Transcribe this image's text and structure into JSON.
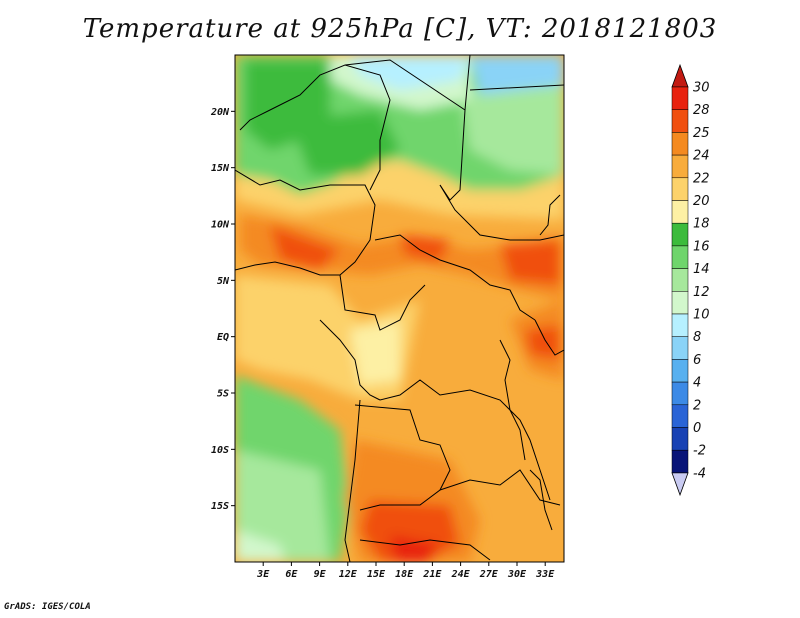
{
  "title": "Temperature at 925hPa [C], VT: 2018121803",
  "credit": "GrADS: IGES/COLA",
  "map": {
    "lon_range": [
      0,
      35
    ],
    "lat_range": [
      -20,
      25
    ],
    "lon_ticks": [
      "3E",
      "6E",
      "9E",
      "12E",
      "15E",
      "18E",
      "21E",
      "24E",
      "27E",
      "30E",
      "33E"
    ],
    "lat_ticks": [
      "20N",
      "15N",
      "10N",
      "5N",
      "EQ",
      "5S",
      "10S",
      "15S"
    ]
  },
  "colorbar": {
    "labels": [
      "30",
      "28",
      "25",
      "24",
      "22",
      "20",
      "18",
      "16",
      "14",
      "12",
      "10",
      "8",
      "6",
      "4",
      "2",
      "0",
      "-2",
      "-4"
    ],
    "colors": [
      "#e8220f",
      "#f05010",
      "#f48a20",
      "#f8ac3c",
      "#fcd26a",
      "#fdf0a4",
      "#3cbb3c",
      "#6fd56c",
      "#a6e89c",
      "#d2f7cc",
      "#b6f0ff",
      "#8ad3f7",
      "#58b0ef",
      "#3c8ae6",
      "#2a64d6",
      "#1842b4",
      "#081478"
    ],
    "top_arrow_color": "#c21a12",
    "bottom_arrow_color": "#c9cbf2"
  },
  "legend_colors": {
    "warm_25": "#f48a20",
    "warm_28": "#f05010",
    "warm_24": "#f8ac3c",
    "warm_22": "#fcd26a",
    "cool_16": "#3cbb3c",
    "cool_14": "#6fd56c",
    "cool_12": "#a6e89c",
    "cold_10": "#b6f0ff",
    "cold_8": "#8ad3f7"
  }
}
